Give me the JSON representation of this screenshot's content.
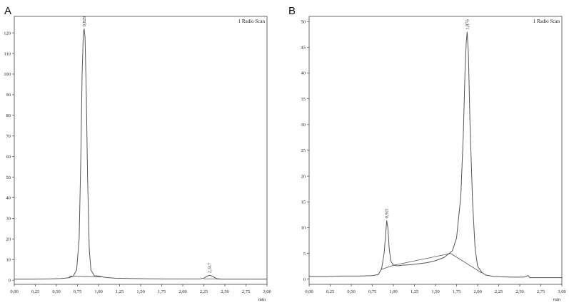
{
  "chart_data": [
    {
      "type": "line",
      "panel_label": "A",
      "legend": "1 Radio Scan",
      "xlabel": "min",
      "ylabel": "",
      "xlim": [
        0,
        3.0
      ],
      "ylim": [
        -2,
        128
      ],
      "x_ticks": [
        0,
        0.25,
        0.5,
        0.75,
        1.0,
        1.25,
        1.5,
        1.75,
        2.0,
        2.25,
        2.5,
        2.75,
        3.0
      ],
      "x_tick_labels": [
        "0,00",
        "0,25",
        "0,50",
        "0,75",
        "1,00",
        "1,25",
        "1,50",
        "1,75",
        "2,00",
        "2,25",
        "2,50",
        "2,75",
        "3,00"
      ],
      "y_ticks": [
        0,
        10,
        20,
        30,
        40,
        50,
        60,
        70,
        80,
        90,
        100,
        110,
        120
      ],
      "y_tick_labels": [
        "0",
        "10",
        "20",
        "30",
        "40",
        "50",
        "60",
        "70",
        "80",
        "90",
        "100",
        "110",
        "120"
      ],
      "grid": false,
      "legend_position": "top-right",
      "series": [
        {
          "points": [
            [
              0,
              0.5
            ],
            [
              0.2,
              0.5
            ],
            [
              0.4,
              0.6
            ],
            [
              0.55,
              0.8
            ],
            [
              0.65,
              1.2
            ],
            [
              0.7,
              2.0
            ],
            [
              0.74,
              5
            ],
            [
              0.77,
              20
            ],
            [
              0.79,
              60
            ],
            [
              0.805,
              100
            ],
            [
              0.82,
              120
            ],
            [
              0.829,
              122
            ],
            [
              0.84,
              118
            ],
            [
              0.855,
              90
            ],
            [
              0.87,
              50
            ],
            [
              0.89,
              15
            ],
            [
              0.91,
              5
            ],
            [
              0.95,
              2.2
            ],
            [
              1.0,
              2.0
            ],
            [
              1.05,
              1.6
            ],
            [
              1.1,
              1.3
            ],
            [
              1.2,
              1.0
            ],
            [
              1.4,
              0.8
            ],
            [
              1.6,
              0.7
            ],
            [
              1.8,
              0.6
            ],
            [
              2.0,
              0.6
            ],
            [
              2.2,
              0.6
            ],
            [
              2.25,
              1.0
            ],
            [
              2.29,
              2.0
            ],
            [
              2.317,
              2.4
            ],
            [
              2.35,
              2.0
            ],
            [
              2.4,
              0.8
            ],
            [
              2.45,
              0.5
            ],
            [
              2.6,
              0.5
            ],
            [
              2.8,
              0.5
            ],
            [
              3.0,
              0.5
            ]
          ]
        }
      ],
      "baselines": [
        [
          [
            0.65,
            2.0
          ],
          [
            1.05,
            1.6
          ]
        ],
        [
          [
            2.25,
            0.6
          ],
          [
            2.45,
            0.5
          ]
        ]
      ],
      "peaks": [
        {
          "x": 0.829,
          "y": 122,
          "label": "0,829"
        },
        {
          "x": 2.317,
          "y": 2.4,
          "label": "2,317"
        }
      ]
    },
    {
      "type": "line",
      "panel_label": "B",
      "legend": "1 Radio Scan",
      "xlabel": "min",
      "ylabel": "",
      "xlim": [
        0,
        3.0
      ],
      "ylim": [
        -1,
        51
      ],
      "x_ticks": [
        0,
        0.25,
        0.5,
        0.75,
        1.0,
        1.25,
        1.5,
        1.75,
        2.0,
        2.25,
        2.5,
        2.75,
        3.0
      ],
      "x_tick_labels": [
        "0,00",
        "0,25",
        "0,50",
        "0,75",
        "1,00",
        "1,25",
        "1,50",
        "1,75",
        "2,00",
        "2,25",
        "2,50",
        "2,75",
        "3,00"
      ],
      "y_ticks": [
        0,
        5,
        10,
        15,
        20,
        25,
        30,
        35,
        40,
        45,
        50
      ],
      "y_tick_labels": [
        "0",
        "5",
        "10",
        "15",
        "20",
        "25",
        "30",
        "35",
        "40",
        "45",
        "50"
      ],
      "grid": false,
      "legend_position": "top-right",
      "series": [
        {
          "points": [
            [
              0,
              0.5
            ],
            [
              0.2,
              0.5
            ],
            [
              0.4,
              0.6
            ],
            [
              0.6,
              0.6
            ],
            [
              0.75,
              0.7
            ],
            [
              0.82,
              0.9
            ],
            [
              0.86,
              2.0
            ],
            [
              0.89,
              5
            ],
            [
              0.91,
              9
            ],
            [
              0.921,
              11.4
            ],
            [
              0.935,
              10
            ],
            [
              0.95,
              6
            ],
            [
              0.97,
              3.5
            ],
            [
              1.0,
              2.7
            ],
            [
              1.05,
              2.6
            ],
            [
              1.1,
              2.7
            ],
            [
              1.2,
              2.8
            ],
            [
              1.3,
              3.0
            ],
            [
              1.4,
              3.2
            ],
            [
              1.5,
              3.6
            ],
            [
              1.6,
              4.2
            ],
            [
              1.7,
              5.5
            ],
            [
              1.75,
              8
            ],
            [
              1.8,
              16
            ],
            [
              1.83,
              28
            ],
            [
              1.85,
              40
            ],
            [
              1.865,
              46
            ],
            [
              1.876,
              48
            ],
            [
              1.89,
              44
            ],
            [
              1.91,
              30
            ],
            [
              1.94,
              15
            ],
            [
              1.97,
              6
            ],
            [
              2.0,
              2.5
            ],
            [
              2.05,
              1.3
            ],
            [
              2.1,
              0.8
            ],
            [
              2.2,
              0.5
            ],
            [
              2.4,
              0.4
            ],
            [
              2.55,
              0.4
            ],
            [
              2.6,
              0.7
            ],
            [
              2.62,
              0.3
            ],
            [
              2.8,
              0.3
            ],
            [
              3.0,
              0.3
            ]
          ]
        }
      ],
      "baselines": [
        [
          [
            0.86,
            1.9
          ],
          [
            1.0,
            2.7
          ]
        ],
        [
          [
            1.0,
            2.7
          ],
          [
            1.68,
            5.0
          ]
        ],
        [
          [
            1.68,
            5.0
          ],
          [
            2.05,
            1.2
          ]
        ]
      ],
      "peaks": [
        {
          "x": 0.921,
          "y": 11.4,
          "label": "0,921"
        },
        {
          "x": 1.876,
          "y": 48,
          "label": "1,876"
        }
      ]
    }
  ]
}
